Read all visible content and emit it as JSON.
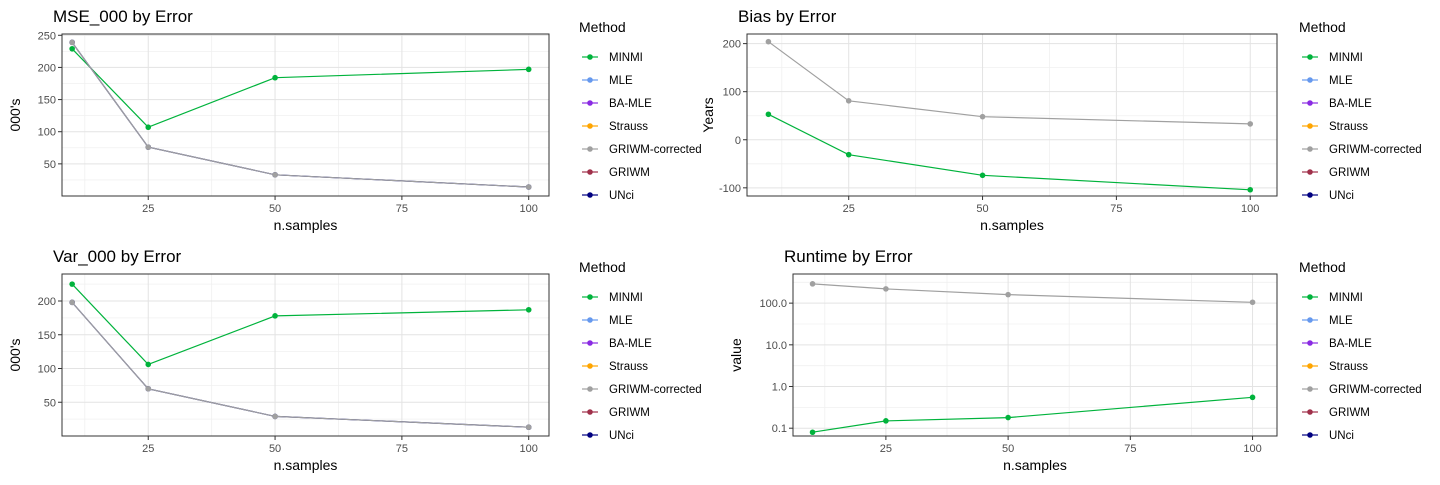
{
  "legend_title": "Method",
  "methods": [
    {
      "name": "MINMI",
      "color": "#00b33c"
    },
    {
      "name": "MLE",
      "color": "#6699ee"
    },
    {
      "name": "BA-MLE",
      "color": "#8a2be2"
    },
    {
      "name": "Strauss",
      "color": "#ffa500"
    },
    {
      "name": "GRIWM-corrected",
      "color": "#a0a0a0"
    },
    {
      "name": "GRIWM",
      "color": "#a0304a"
    },
    {
      "name": "UNci",
      "color": "#000080"
    }
  ],
  "chart_data": [
    {
      "type": "line",
      "title": "MSE_000 by Error",
      "xlabel": "n.samples",
      "ylabel": "000's",
      "xlim": [
        8,
        104
      ],
      "ylim": [
        0,
        252
      ],
      "xticks": [
        25,
        50,
        75,
        100
      ],
      "xtick_labels": [
        "25",
        "50",
        "75",
        "100"
      ],
      "yticks": [
        50,
        100,
        150,
        200,
        250
      ],
      "ytick_labels": [
        "50",
        "100",
        "150",
        "200",
        "250"
      ],
      "yscale": "linear",
      "grid": true,
      "legend_position": "right",
      "x": [
        10,
        25,
        50,
        100
      ],
      "series": [
        {
          "name": "MINMI",
          "values": [
            229,
            107,
            184,
            197
          ]
        },
        {
          "name": "UNci",
          "values": [
            239,
            76,
            33,
            14
          ]
        },
        {
          "name": "GRIWM-corrected",
          "values": [
            239,
            76,
            33,
            14
          ]
        }
      ]
    },
    {
      "type": "line",
      "title": "Bias by Error",
      "xlabel": "n.samples",
      "ylabel": "Years",
      "xlim": [
        6,
        105
      ],
      "ylim": [
        -117,
        220
      ],
      "xticks": [
        25,
        50,
        75,
        100
      ],
      "xtick_labels": [
        "25",
        "50",
        "75",
        "100"
      ],
      "yticks": [
        -100,
        0,
        100,
        200
      ],
      "ytick_labels": [
        "-100",
        "0",
        "100",
        "200"
      ],
      "yscale": "linear",
      "grid": true,
      "legend_position": "right",
      "x": [
        10,
        25,
        50,
        100
      ],
      "series": [
        {
          "name": "GRIWM-corrected",
          "values": [
            204,
            81,
            48,
            33
          ]
        },
        {
          "name": "MINMI",
          "values": [
            53,
            -31,
            -74,
            -104
          ]
        }
      ]
    },
    {
      "type": "line",
      "title": "Var_000 by Error",
      "xlabel": "n.samples",
      "ylabel": "000's",
      "xlim": [
        8,
        104
      ],
      "ylim": [
        0,
        240
      ],
      "xticks": [
        25,
        50,
        75,
        100
      ],
      "xtick_labels": [
        "25",
        "50",
        "75",
        "100"
      ],
      "yticks": [
        50,
        100,
        150,
        200
      ],
      "ytick_labels": [
        "50",
        "100",
        "150",
        "200"
      ],
      "yscale": "linear",
      "grid": true,
      "legend_position": "right",
      "x": [
        10,
        25,
        50,
        100
      ],
      "series": [
        {
          "name": "MINMI",
          "values": [
            225,
            106,
            178,
            187
          ]
        },
        {
          "name": "UNci",
          "values": [
            198,
            70,
            29,
            13
          ]
        },
        {
          "name": "GRIWM-corrected",
          "values": [
            198,
            70,
            29,
            13
          ]
        }
      ]
    },
    {
      "type": "line",
      "title": "Runtime by Error",
      "xlabel": "n.samples",
      "ylabel": "value",
      "xlim": [
        6,
        105
      ],
      "ylim": [
        0.065,
        500
      ],
      "xticks": [
        25,
        50,
        75,
        100
      ],
      "xtick_labels": [
        "25",
        "50",
        "75",
        "100"
      ],
      "yticks": [
        0.1,
        1,
        10,
        100
      ],
      "ytick_labels": [
        "0.1",
        "1.0",
        "10.0",
        "100.0"
      ],
      "yscale": "log",
      "grid": true,
      "legend_position": "right",
      "x": [
        10,
        25,
        50,
        100
      ],
      "series": [
        {
          "name": "GRIWM-corrected",
          "values": [
            290,
            220,
            160,
            105
          ]
        },
        {
          "name": "MINMI",
          "values": [
            0.08,
            0.15,
            0.18,
            0.55
          ]
        }
      ]
    }
  ]
}
